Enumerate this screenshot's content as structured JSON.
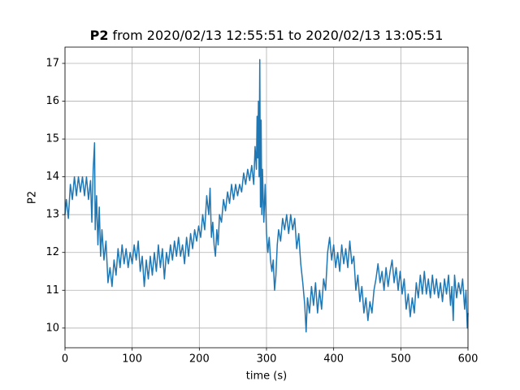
{
  "chart_data": {
    "type": "line",
    "title_variable": "P2",
    "title_range": "from 2020/02/13 12:55:51 to 2020/02/13 13:05:51",
    "x_label": "time (s)",
    "y_label": "P2",
    "color": "#1f77b4",
    "grid": true,
    "xlim": [
      0,
      600
    ],
    "ylim": [
      9.48,
      17.43
    ],
    "xticks": [
      0,
      100,
      200,
      300,
      400,
      500,
      600
    ],
    "yticks": [
      10,
      11,
      12,
      13,
      14,
      15,
      16,
      17
    ],
    "x": [
      0,
      2,
      5,
      8,
      11,
      14,
      17,
      20,
      23,
      26,
      29,
      32,
      35,
      38,
      40,
      42,
      44,
      45,
      47,
      49,
      51,
      53,
      55,
      58,
      61,
      64,
      67,
      70,
      73,
      76,
      79,
      82,
      85,
      88,
      91,
      94,
      97,
      100,
      103,
      106,
      109,
      112,
      115,
      118,
      121,
      124,
      127,
      130,
      133,
      136,
      139,
      142,
      145,
      148,
      151,
      154,
      157,
      160,
      163,
      166,
      169,
      172,
      175,
      178,
      181,
      184,
      187,
      190,
      193,
      196,
      199,
      202,
      205,
      208,
      211,
      214,
      216,
      218,
      220,
      222,
      224,
      226,
      228,
      230,
      233,
      236,
      239,
      242,
      245,
      248,
      251,
      254,
      257,
      260,
      263,
      266,
      269,
      272,
      275,
      278,
      281,
      283,
      285,
      286,
      287,
      288,
      289,
      290,
      291,
      292,
      293,
      294,
      296,
      298,
      300,
      302,
      304,
      306,
      308,
      310,
      312,
      314,
      316,
      318,
      321,
      324,
      327,
      330,
      333,
      336,
      339,
      342,
      345,
      348,
      351,
      354,
      357,
      359,
      361,
      364,
      367,
      370,
      373,
      376,
      379,
      382,
      385,
      388,
      391,
      394,
      397,
      400,
      403,
      406,
      409,
      412,
      415,
      418,
      421,
      424,
      427,
      430,
      433,
      436,
      439,
      442,
      445,
      448,
      451,
      454,
      457,
      460,
      463,
      466,
      469,
      472,
      475,
      478,
      481,
      484,
      487,
      490,
      493,
      496,
      499,
      502,
      505,
      508,
      511,
      514,
      517,
      520,
      523,
      526,
      529,
      532,
      535,
      538,
      541,
      544,
      547,
      550,
      553,
      556,
      559,
      562,
      565,
      568,
      571,
      574,
      576,
      578,
      580,
      583,
      586,
      589,
      592,
      595,
      597,
      599,
      600
    ],
    "values": [
      13.0,
      13.4,
      12.9,
      13.8,
      13.4,
      14.0,
      13.5,
      14.0,
      13.6,
      14.0,
      13.5,
      14.0,
      13.4,
      13.9,
      12.8,
      14.2,
      14.9,
      12.6,
      13.5,
      12.2,
      13.2,
      11.9,
      12.6,
      11.8,
      12.3,
      11.2,
      11.6,
      11.1,
      11.8,
      11.4,
      12.1,
      11.6,
      12.2,
      11.7,
      12.1,
      11.6,
      12.0,
      11.7,
      12.2,
      11.8,
      12.3,
      11.5,
      11.9,
      11.1,
      11.8,
      11.3,
      11.9,
      11.4,
      12.0,
      11.5,
      12.2,
      11.6,
      12.1,
      11.3,
      12.0,
      11.7,
      12.2,
      11.8,
      12.3,
      11.9,
      12.4,
      11.9,
      12.2,
      11.7,
      12.4,
      11.9,
      12.5,
      12.1,
      12.6,
      12.3,
      12.7,
      12.4,
      13.0,
      12.6,
      13.5,
      13.0,
      13.7,
      12.4,
      12.8,
      12.2,
      11.9,
      12.6,
      12.2,
      13.0,
      12.8,
      13.4,
      13.1,
      13.6,
      13.3,
      13.8,
      13.4,
      13.8,
      13.5,
      13.8,
      13.6,
      14.1,
      13.8,
      14.2,
      13.9,
      14.3,
      13.8,
      14.8,
      14.2,
      15.6,
      14.5,
      16.0,
      14.0,
      17.1,
      13.2,
      15.5,
      13.0,
      14.2,
      12.8,
      13.8,
      12.5,
      12.0,
      12.4,
      11.8,
      11.5,
      11.8,
      11.0,
      11.4,
      12.2,
      12.6,
      12.3,
      12.9,
      12.6,
      13.0,
      12.5,
      13.0,
      12.6,
      12.9,
      12.1,
      12.5,
      11.7,
      11.2,
      10.6,
      9.9,
      10.8,
      10.4,
      11.1,
      10.6,
      11.2,
      10.4,
      11.0,
      10.5,
      11.3,
      11.0,
      12.0,
      12.4,
      11.8,
      12.2,
      11.6,
      12.0,
      11.5,
      12.2,
      11.7,
      12.1,
      11.6,
      12.3,
      11.7,
      11.9,
      11.0,
      11.4,
      10.7,
      11.1,
      10.4,
      10.8,
      10.2,
      10.7,
      10.4,
      11.0,
      11.3,
      11.7,
      11.2,
      11.5,
      11.0,
      11.6,
      11.1,
      11.5,
      11.8,
      11.2,
      11.6,
      11.0,
      11.5,
      10.9,
      11.3,
      10.5,
      10.9,
      10.3,
      10.8,
      10.4,
      11.2,
      10.8,
      11.4,
      10.9,
      11.5,
      10.9,
      11.3,
      10.8,
      11.4,
      10.9,
      11.3,
      10.8,
      11.2,
      10.7,
      11.3,
      10.9,
      11.4,
      10.6,
      11.1,
      10.2,
      11.4,
      10.8,
      11.2,
      10.9,
      11.3,
      10.5,
      11.0,
      10.0,
      10.4
    ]
  }
}
